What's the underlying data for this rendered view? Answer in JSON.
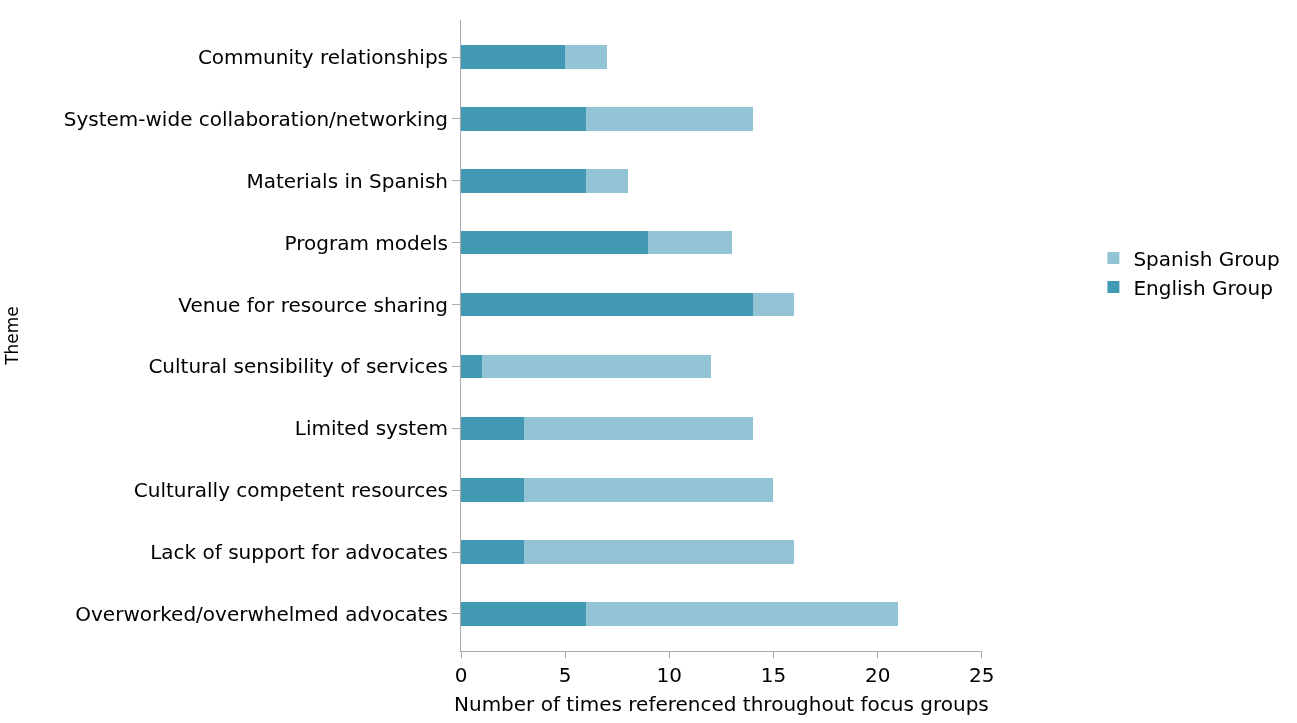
{
  "chart_data": {
    "type": "bar",
    "orientation": "horizontal",
    "stacked": true,
    "xlabel": "Number of times referenced throughout focus groups",
    "ylabel": "Theme",
    "categories": [
      "Community relationships",
      "System-wide collaboration/networking",
      "Materials in Spanish",
      "Program models",
      "Venue for resource sharing",
      "Cultural sensibility of services",
      "Limited system",
      "Culturally competent resources",
      "Lack of support for advocates",
      "Overworked/overwhelmed advocates"
    ],
    "series": [
      {
        "name": "English Group",
        "color": "#4299b4",
        "values": [
          5,
          6,
          6,
          9,
          14,
          1,
          3,
          3,
          3,
          6
        ]
      },
      {
        "name": "Spanish Group",
        "color": "#93c4d6",
        "values": [
          2,
          8,
          2,
          4,
          2,
          11,
          11,
          12,
          13,
          15
        ]
      }
    ],
    "xlim": [
      0,
      25
    ],
    "xticks": [
      0,
      5,
      10,
      15,
      20,
      25
    ],
    "grid": false,
    "legend": "right"
  }
}
